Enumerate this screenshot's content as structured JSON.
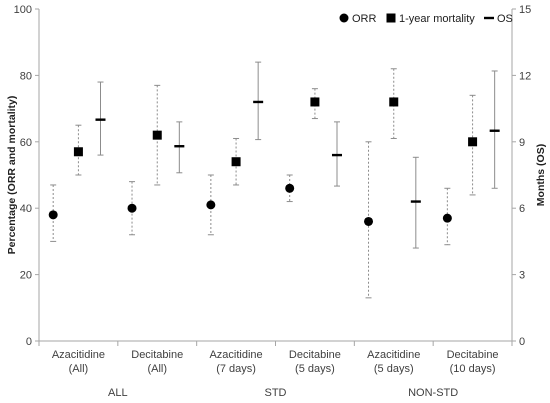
{
  "chart_data": {
    "type": "scatter",
    "categories": [
      [
        "Azacitidine",
        "(All)"
      ],
      [
        "Decitabine",
        "(All)"
      ],
      [
        "Azacitidine",
        "(7 days)"
      ],
      [
        "Decitabine",
        "(5 days)"
      ],
      [
        "Azacitidine",
        "(5 days)"
      ],
      [
        "Decitabine",
        "(10 days)"
      ]
    ],
    "groups": [
      {
        "label": "ALL",
        "categories": [
          0,
          1
        ]
      },
      {
        "label": "STD",
        "categories": [
          2,
          3
        ]
      },
      {
        "label": "NON-STD",
        "categories": [
          4,
          5
        ]
      }
    ],
    "ylabel_left": "Percentage (ORR and mortality)",
    "ylabel_right": "Months (OS)",
    "ylim_left": [
      0,
      100
    ],
    "yticks_left": [
      "0",
      "20",
      "40",
      "60",
      "80",
      "100"
    ],
    "ylim_right": [
      0,
      15
    ],
    "yticks_right": [
      "0",
      "3",
      "6",
      "9",
      "12",
      "15"
    ],
    "legend_position": "top-right",
    "series": [
      {
        "name": "ORR",
        "marker": "circle",
        "axis": "left",
        "error_style": "dashed",
        "values": [
          38,
          40,
          41,
          46,
          36,
          37
        ],
        "lower": [
          30,
          32,
          32,
          42,
          13,
          29
        ],
        "upper": [
          47,
          48,
          50,
          50,
          60,
          46
        ]
      },
      {
        "name": "1-year mortality",
        "marker": "square",
        "axis": "left",
        "error_style": "dashed",
        "values": [
          57,
          62,
          54,
          72,
          72,
          60
        ],
        "lower": [
          50,
          47,
          47,
          67,
          61,
          44
        ],
        "upper": [
          65,
          77,
          61,
          76,
          82,
          74
        ]
      },
      {
        "name": "OS",
        "marker": "dash",
        "axis": "right",
        "error_style": "solid",
        "values": [
          10.0,
          8.8,
          10.8,
          8.4,
          6.3,
          9.5
        ],
        "lower": [
          8.4,
          7.6,
          9.1,
          7.0,
          4.2,
          6.9
        ],
        "upper": [
          11.7,
          9.9,
          12.6,
          9.9,
          8.3,
          12.2
        ]
      }
    ],
    "colors": {
      "marker": "#000000",
      "errorbar": "#8c8c8c",
      "axis": "#a6a6a6",
      "text": "#404040"
    }
  }
}
